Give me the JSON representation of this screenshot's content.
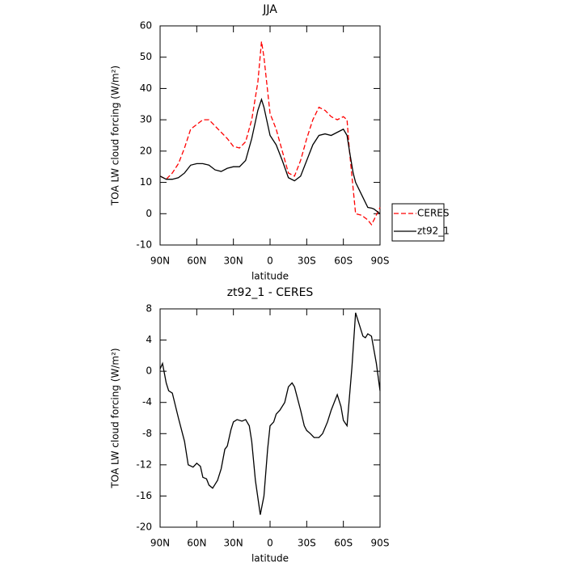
{
  "chart_data": [
    {
      "type": "line",
      "title": "JJA",
      "xlabel": "latitude",
      "ylabel": "TOA LW cloud forcing (W/m²)",
      "x": [
        90,
        85,
        80,
        75,
        70,
        65,
        60,
        55,
        50,
        45,
        40,
        35,
        30,
        25,
        20,
        15,
        10,
        7,
        5,
        0,
        -5,
        -10,
        -15,
        -20,
        -25,
        -30,
        -35,
        -40,
        -45,
        -50,
        -55,
        -60,
        -63,
        -65,
        -68,
        -70,
        -75,
        -80,
        -83,
        -85,
        -90
      ],
      "series": [
        {
          "name": "CERES",
          "color": "#ff0000",
          "line_style": "dashed",
          "values": [
            12,
            11,
            13,
            16,
            21,
            27,
            28.5,
            30,
            30,
            28,
            26,
            24,
            21.5,
            21,
            23,
            30,
            42,
            55,
            50,
            32,
            27,
            20,
            13,
            12,
            17,
            24,
            30,
            34,
            33,
            31,
            30,
            31,
            30,
            20,
            8,
            0,
            -0.5,
            -2,
            -3.5,
            -2,
            2
          ]
        },
        {
          "name": "zt92_1",
          "color": "#000000",
          "line_style": "solid",
          "values": [
            12,
            11,
            11,
            11.5,
            13,
            15.5,
            16,
            16,
            15.5,
            14,
            13.5,
            14.5,
            15,
            15,
            17,
            24,
            33,
            36.5,
            34,
            25,
            22,
            17,
            11.5,
            10.5,
            12,
            17,
            22,
            25,
            25.5,
            25,
            26,
            27,
            25,
            20,
            13,
            10,
            6,
            2,
            1.8,
            1.5,
            0
          ]
        }
      ],
      "xlim": [
        90,
        -90
      ],
      "xticks": [
        {
          "value": 90,
          "label": "90N"
        },
        {
          "value": 60,
          "label": "60N"
        },
        {
          "value": 30,
          "label": "30N"
        },
        0,
        {
          "value": -30,
          "label": "30S"
        },
        {
          "value": -60,
          "label": "60S"
        },
        {
          "value": -90,
          "label": "90S"
        }
      ],
      "ylim": [
        -10,
        60
      ],
      "yticks": [
        -10,
        0,
        10,
        20,
        30,
        40,
        50,
        60
      ],
      "legend": "outside right"
    },
    {
      "type": "line",
      "title": "zt92_1 - CERES",
      "xlabel": "latitude",
      "ylabel": "TOA LW cloud forcing (W/m²)",
      "x": [
        90,
        88,
        85,
        83,
        80,
        75,
        70,
        67,
        63,
        60,
        57,
        55,
        52,
        50,
        47,
        43,
        40,
        37,
        35,
        32,
        30,
        27,
        23,
        20,
        17,
        15,
        12,
        8,
        5,
        2,
        0,
        -3,
        -5,
        -8,
        -12,
        -15,
        -18,
        -20,
        -25,
        -28,
        -30,
        -33,
        -36,
        -40,
        -43,
        -47,
        -50,
        -55,
        -58,
        -60,
        -63,
        -67,
        -70,
        -73,
        -76,
        -78,
        -80,
        -83,
        -87,
        -90
      ],
      "series": [
        {
          "color": "#000000",
          "line_style": "solid",
          "values": [
            0.3,
            1,
            -1.5,
            -2.5,
            -2.8,
            -6,
            -9,
            -12,
            -12.3,
            -11.8,
            -12.2,
            -13.6,
            -13.8,
            -14.6,
            -15,
            -14,
            -12.5,
            -10,
            -9.6,
            -7.5,
            -6.5,
            -6.2,
            -6.4,
            -6.2,
            -7,
            -9,
            -14,
            -18.4,
            -16,
            -10,
            -7,
            -6.5,
            -5.5,
            -5,
            -4,
            -2,
            -1.5,
            -2,
            -5,
            -7,
            -7.6,
            -8,
            -8.5,
            -8.5,
            -8,
            -6.5,
            -5,
            -3,
            -4.5,
            -6.3,
            -7,
            0.5,
            7.5,
            6,
            4.5,
            4.3,
            4.8,
            4.5,
            1,
            -2.5
          ]
        }
      ],
      "xlim": [
        90,
        -90
      ],
      "xticks": [
        {
          "value": 90,
          "label": "90N"
        },
        {
          "value": 60,
          "label": "60N"
        },
        {
          "value": 30,
          "label": "30N"
        },
        0,
        {
          "value": -30,
          "label": "30S"
        },
        {
          "value": -60,
          "label": "60S"
        },
        {
          "value": -90,
          "label": "90S"
        }
      ],
      "ylim": [
        -20,
        8
      ],
      "yticks": [
        -20,
        -16,
        -12,
        -8,
        -4,
        0,
        4,
        8
      ]
    }
  ]
}
